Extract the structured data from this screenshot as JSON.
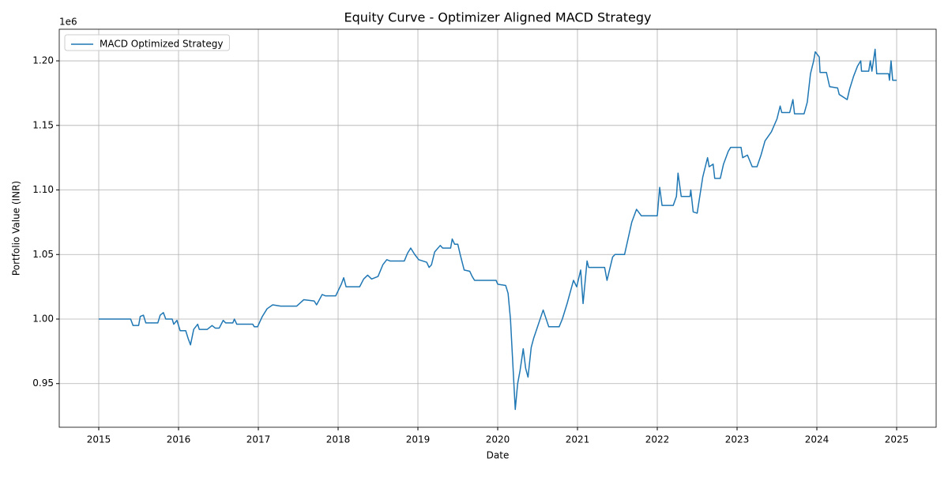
{
  "chart_data": {
    "type": "line",
    "title": "Equity Curve - Optimizer Aligned MACD Strategy",
    "x_label": "Date",
    "y_label": "Portfolio Value (INR)",
    "offset_text": "1e6",
    "grid": true,
    "legend": "upper left",
    "xlim": [
      2014.505,
      2025.495
    ],
    "ylim": [
      0.9162,
      1.2245
    ],
    "xticks": [
      2015,
      2016,
      2017,
      2018,
      2019,
      2020,
      2021,
      2022,
      2023,
      2024,
      2025
    ],
    "yticks": [
      {
        "value": 0.95,
        "label": "0.95"
      },
      {
        "value": 1.0,
        "label": "1.00"
      },
      {
        "value": 1.05,
        "label": "1.05"
      },
      {
        "value": 1.1,
        "label": "1.10"
      },
      {
        "value": 1.15,
        "label": "1.15"
      },
      {
        "value": 1.2,
        "label": "1.20"
      }
    ],
    "x": [
      2015.0,
      2015.4,
      2015.43,
      2015.5,
      2015.52,
      2015.56,
      2015.59,
      2015.74,
      2015.77,
      2015.81,
      2015.84,
      2015.92,
      2015.94,
      2015.98,
      2016.02,
      2016.09,
      2016.12,
      2016.15,
      2016.19,
      2016.24,
      2016.26,
      2016.36,
      2016.42,
      2016.46,
      2016.51,
      2016.56,
      2016.59,
      2016.68,
      2016.7,
      2016.73,
      2016.93,
      2016.95,
      2016.99,
      2017.05,
      2017.11,
      2017.18,
      2017.28,
      2017.48,
      2017.57,
      2017.7,
      2017.73,
      2017.8,
      2017.84,
      2017.97,
      2018.04,
      2018.07,
      2018.1,
      2018.27,
      2018.32,
      2018.37,
      2018.42,
      2018.5,
      2018.56,
      2018.61,
      2018.65,
      2018.83,
      2018.87,
      2018.91,
      2018.96,
      2019.01,
      2019.11,
      2019.14,
      2019.17,
      2019.21,
      2019.28,
      2019.31,
      2019.41,
      2019.43,
      2019.46,
      2019.5,
      2019.53,
      2019.58,
      2019.65,
      2019.68,
      2019.71,
      2019.98,
      2020.0,
      2020.1,
      2020.13,
      2020.16,
      2020.19,
      2020.22,
      2020.25,
      2020.28,
      2020.32,
      2020.35,
      2020.38,
      2020.42,
      2020.45,
      2020.57,
      2020.64,
      2020.77,
      2020.81,
      2020.87,
      2020.95,
      2020.99,
      2021.04,
      2021.07,
      2021.12,
      2021.14,
      2021.34,
      2021.37,
      2021.44,
      2021.47,
      2021.59,
      2021.68,
      2021.74,
      2021.8,
      2022.0,
      2022.03,
      2022.06,
      2022.2,
      2022.24,
      2022.26,
      2022.3,
      2022.41,
      2022.42,
      2022.45,
      2022.5,
      2022.52,
      2022.57,
      2022.63,
      2022.65,
      2022.7,
      2022.72,
      2022.79,
      2022.83,
      2022.89,
      2022.92,
      2023.05,
      2023.07,
      2023.13,
      2023.19,
      2023.25,
      2023.3,
      2023.35,
      2023.43,
      2023.5,
      2023.54,
      2023.56,
      2023.66,
      2023.7,
      2023.72,
      2023.84,
      2023.88,
      2023.92,
      2023.96,
      2023.98,
      2024.03,
      2024.04,
      2024.12,
      2024.16,
      2024.26,
      2024.28,
      2024.38,
      2024.41,
      2024.46,
      2024.51,
      2024.55,
      2024.56,
      2024.65,
      2024.67,
      2024.69,
      2024.73,
      2024.75,
      2024.9,
      2024.91,
      2024.93,
      2024.95,
      2025.0
    ],
    "series": [
      {
        "name": "MACD Optimized Strategy",
        "color": "#1f77b4",
        "values": [
          1.0,
          1.0,
          0.995,
          0.995,
          1.002,
          1.003,
          0.997,
          0.997,
          1.003,
          1.005,
          1.0,
          1.0,
          0.996,
          0.999,
          0.991,
          0.991,
          0.985,
          0.98,
          0.992,
          0.996,
          0.992,
          0.992,
          0.995,
          0.993,
          0.993,
          0.999,
          0.997,
          0.997,
          1.0,
          0.996,
          0.996,
          0.994,
          0.994,
          1.002,
          1.008,
          1.011,
          1.01,
          1.01,
          1.015,
          1.014,
          1.011,
          1.019,
          1.018,
          1.018,
          1.027,
          1.032,
          1.025,
          1.025,
          1.031,
          1.034,
          1.031,
          1.033,
          1.042,
          1.046,
          1.045,
          1.045,
          1.051,
          1.055,
          1.05,
          1.046,
          1.044,
          1.04,
          1.042,
          1.052,
          1.057,
          1.055,
          1.055,
          1.062,
          1.058,
          1.058,
          1.05,
          1.038,
          1.037,
          1.033,
          1.03,
          1.03,
          1.027,
          1.026,
          1.02,
          1.0,
          0.965,
          0.93,
          0.95,
          0.96,
          0.977,
          0.962,
          0.955,
          0.978,
          0.985,
          1.007,
          0.994,
          0.994,
          1.0,
          1.012,
          1.03,
          1.025,
          1.038,
          1.012,
          1.045,
          1.04,
          1.04,
          1.03,
          1.048,
          1.05,
          1.05,
          1.075,
          1.085,
          1.08,
          1.08,
          1.102,
          1.088,
          1.088,
          1.095,
          1.113,
          1.095,
          1.095,
          1.1,
          1.083,
          1.082,
          1.09,
          1.11,
          1.125,
          1.118,
          1.12,
          1.109,
          1.109,
          1.12,
          1.13,
          1.133,
          1.133,
          1.125,
          1.127,
          1.118,
          1.118,
          1.127,
          1.138,
          1.145,
          1.155,
          1.165,
          1.16,
          1.16,
          1.17,
          1.159,
          1.159,
          1.168,
          1.19,
          1.2,
          1.207,
          1.203,
          1.191,
          1.191,
          1.18,
          1.179,
          1.174,
          1.17,
          1.178,
          1.188,
          1.196,
          1.2,
          1.192,
          1.192,
          1.2,
          1.192,
          1.209,
          1.19,
          1.19,
          1.185,
          1.2,
          1.185,
          1.185
        ]
      }
    ]
  }
}
